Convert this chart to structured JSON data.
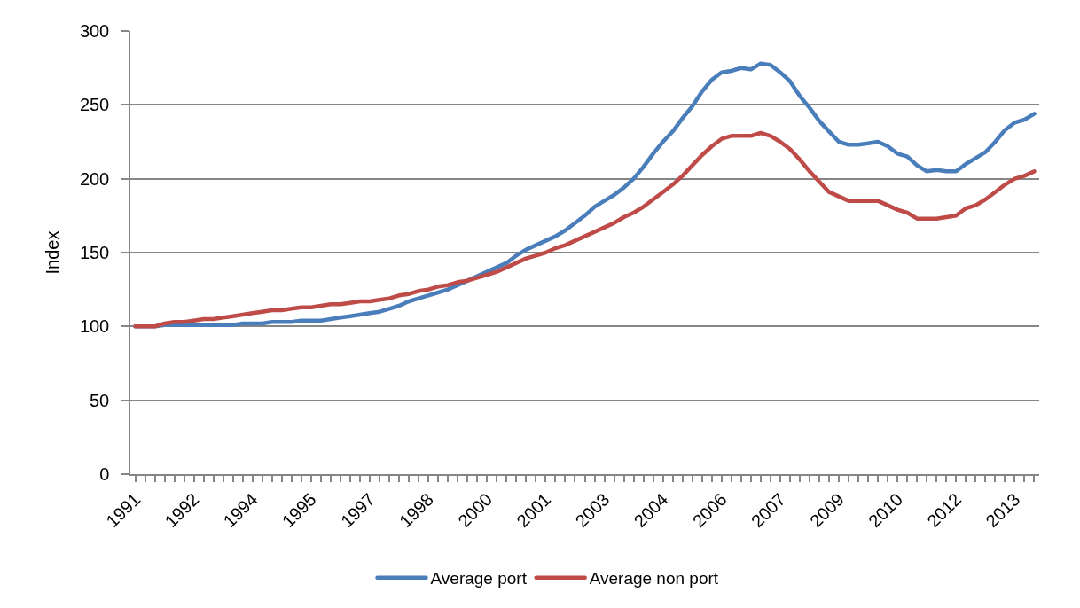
{
  "chart_data": {
    "type": "line",
    "ylabel": "Index",
    "categories": [
      "1991",
      null,
      null,
      null,
      null,
      null,
      "1992",
      null,
      null,
      null,
      null,
      null,
      "1994",
      null,
      null,
      null,
      null,
      null,
      "1995",
      null,
      null,
      null,
      null,
      null,
      "1997",
      null,
      null,
      null,
      null,
      null,
      "1998",
      null,
      null,
      null,
      null,
      null,
      "2000",
      null,
      null,
      null,
      null,
      null,
      "2001",
      null,
      null,
      null,
      null,
      null,
      "2003",
      null,
      null,
      null,
      null,
      null,
      "2004",
      null,
      null,
      null,
      null,
      null,
      "2006",
      null,
      null,
      null,
      null,
      null,
      "2007",
      null,
      null,
      null,
      null,
      null,
      "2009",
      null,
      null,
      null,
      null,
      null,
      "2010",
      null,
      null,
      null,
      null,
      null,
      "2012",
      null,
      null,
      null,
      null,
      null,
      "2013",
      null,
      null
    ],
    "series": [
      {
        "name": "Average port",
        "color": "#4a7ebb",
        "values": [
          100,
          100,
          100,
          101,
          101,
          101,
          101,
          101,
          101,
          101,
          101,
          102,
          102,
          102,
          103,
          103,
          103,
          104,
          104,
          104,
          105,
          106,
          107,
          108,
          109,
          110,
          112,
          114,
          117,
          119,
          121,
          123,
          125,
          128,
          131,
          134,
          137,
          140,
          143,
          148,
          152,
          155,
          158,
          161,
          165,
          170,
          175,
          181,
          185,
          189,
          194,
          200,
          208,
          217,
          225,
          232,
          241,
          249,
          259,
          267,
          272,
          273,
          275,
          274,
          278,
          277,
          272,
          266,
          256,
          248,
          239,
          232,
          225,
          223,
          223,
          224,
          225,
          222,
          217,
          215,
          209,
          205,
          206,
          205,
          205,
          210,
          214,
          218,
          225,
          233,
          238,
          240,
          244
        ]
      },
      {
        "name": "Average non port",
        "color": "#be4b48",
        "values": [
          100,
          100,
          100,
          102,
          103,
          103,
          104,
          105,
          105,
          106,
          107,
          108,
          109,
          110,
          111,
          111,
          112,
          113,
          113,
          114,
          115,
          115,
          116,
          117,
          117,
          118,
          119,
          121,
          122,
          124,
          125,
          127,
          128,
          130,
          131,
          133,
          135,
          137,
          140,
          143,
          146,
          148,
          150,
          153,
          155,
          158,
          161,
          164,
          167,
          170,
          174,
          177,
          181,
          186,
          191,
          196,
          202,
          209,
          216,
          222,
          227,
          229,
          229,
          229,
          231,
          229,
          225,
          220,
          213,
          205,
          198,
          191,
          188,
          185,
          185,
          185,
          185,
          182,
          179,
          177,
          173,
          173,
          173,
          174,
          175,
          180,
          182,
          186,
          191,
          196,
          200,
          202,
          205
        ]
      }
    ],
    "ylim": [
      0,
      300
    ],
    "yticks": [
      0,
      50,
      100,
      150,
      200,
      250,
      300
    ],
    "grid": "y",
    "legend": "bottom",
    "line_style": "solid"
  }
}
